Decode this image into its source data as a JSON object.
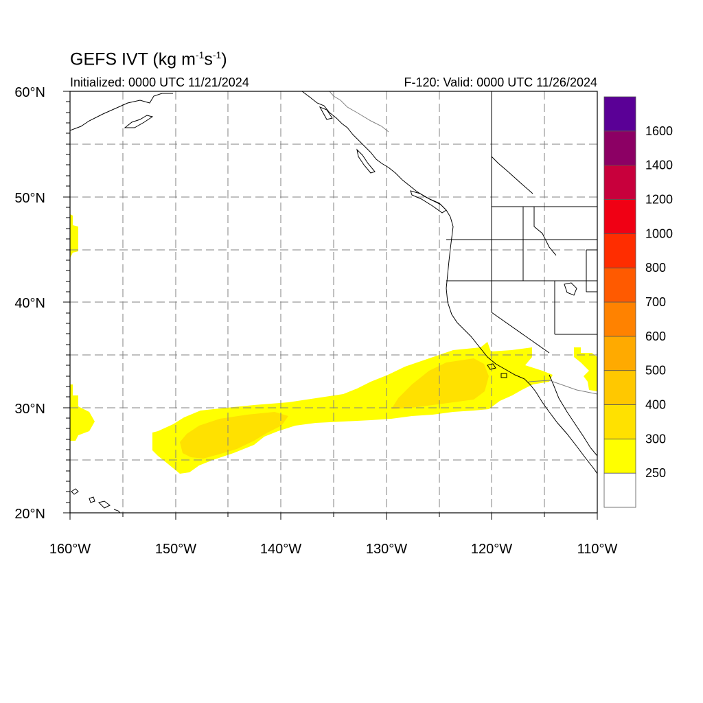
{
  "title": {
    "main": "GEFS IVT (kg m",
    "sup1": "-1",
    "mid": "s",
    "sup2": "-1",
    "end": ")"
  },
  "subtitle": {
    "left": "Initialized: 0000 UTC 11/21/2024",
    "right": "F-120: Valid: 0000 UTC 11/26/2024"
  },
  "axes": {
    "lat_labels": [
      "60°N",
      "50°N",
      "40°N",
      "30°N",
      "20°N"
    ],
    "lon_labels": [
      "160°W",
      "150°W",
      "140°W",
      "130°W",
      "120°W",
      "110°W"
    ],
    "lat_range": [
      20,
      60
    ],
    "lon_range": [
      -160,
      -110
    ]
  },
  "colorbar": {
    "labels": [
      "250",
      "300",
      "400",
      "500",
      "600",
      "700",
      "800",
      "1000",
      "1200",
      "1400",
      "1600"
    ],
    "colors": [
      "#ffffff",
      "#ffff00",
      "#ffe100",
      "#ffc800",
      "#ffaa00",
      "#ff8200",
      "#ff5a00",
      "#ff2d00",
      "#f00014",
      "#c8003c",
      "#8c0064",
      "#5a0096"
    ]
  },
  "ivt_regions": [
    {
      "name": "main-atmospheric-river",
      "level": "250-300"
    },
    {
      "name": "main-atmospheric-river-core",
      "level": "300-400"
    },
    {
      "name": "left-edge-patch-south",
      "level": "250-300"
    },
    {
      "name": "left-edge-patch-north",
      "level": "250-300"
    },
    {
      "name": "east-patch",
      "level": "250-300"
    }
  ]
}
